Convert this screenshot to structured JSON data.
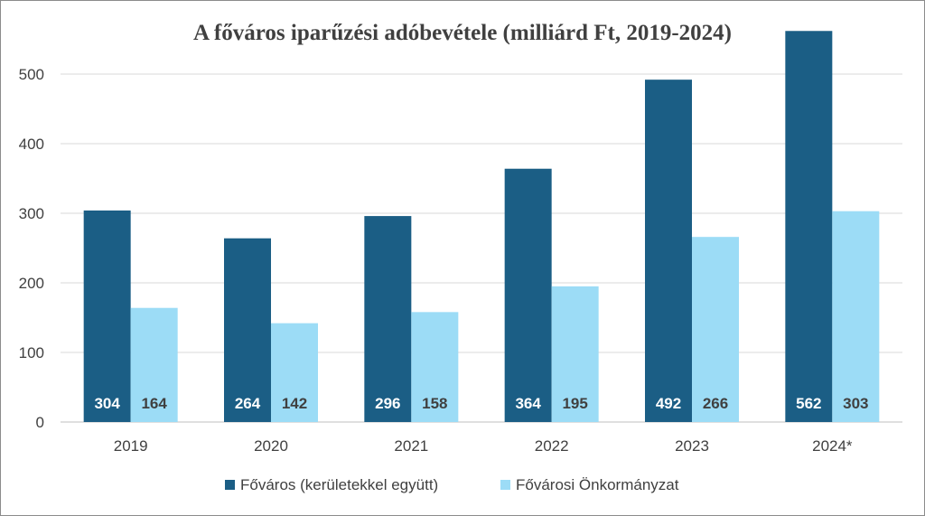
{
  "chart_data": {
    "type": "bar",
    "title": "A főváros iparűzési adóbevétele (milliárd Ft, 2019-2024)",
    "categories": [
      "2019",
      "2020",
      "2021",
      "2022",
      "2023",
      "2024*"
    ],
    "series": [
      {
        "name": "Főváros (kerületekkel együtt)",
        "values": [
          304,
          264,
          296,
          364,
          492,
          562
        ],
        "color": "#1b5e85"
      },
      {
        "name": "Fővárosi Önkormányzat",
        "values": [
          164,
          142,
          158,
          195,
          266,
          303
        ],
        "color": "#9cdcf6"
      }
    ],
    "yticks": [
      0,
      100,
      200,
      300,
      400,
      500
    ],
    "ylim": [
      0,
      550
    ],
    "grid": true,
    "legend_position": "bottom",
    "data_labels_position": "inside-base"
  }
}
